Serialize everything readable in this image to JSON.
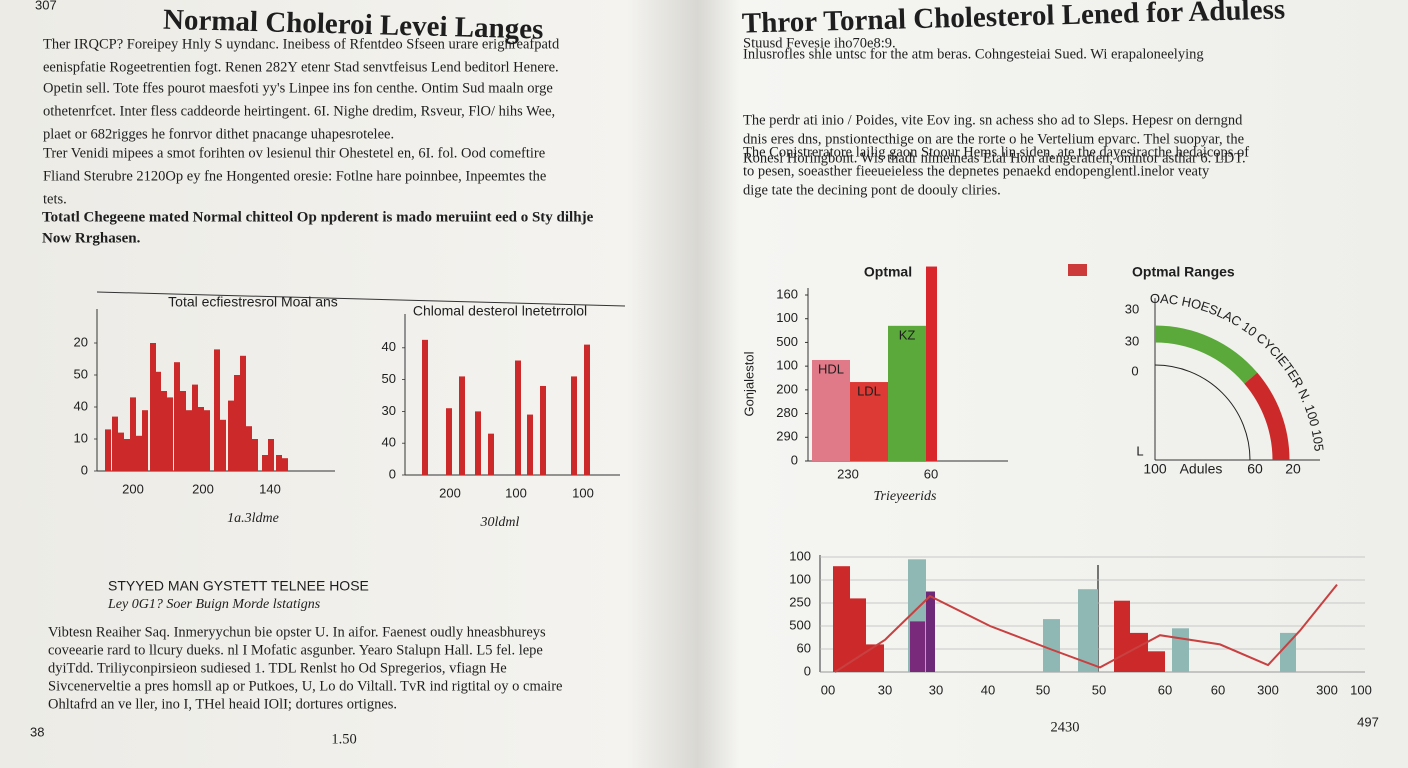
{
  "left_page": {
    "page_number_top": "307",
    "title": "Normal Choleroi Levei Langes",
    "paragraphs": [
      [
        "Ther IRQCP? Foreipey Hnly S uyndanc. Ineibess of Rfentdeo Sfseen urare erighreafpatd",
        "eenispfatie Rogeetrentien fogt. Renen 282Y etenr Stad senvtfeisus Lend beditorl Henere."
      ],
      [
        "Opetin sell. Tote ffes pourot maesfoti yy's Linpee ins fon centhe. Ontim Sud maaln orge",
        "othetenrfcet. Inter fless caddeorde heirtingent. 6I. Nighe dredim, Rsveur, FlO/ hihs Wee,",
        "plaet or 682rigges he fonrvor dithet pnacange uhapesrotelee."
      ],
      [
        "Trer Venidi mipees a smot forihten ov lesienul thir Ohestetel en, 6I. fol. Ood comeftire",
        "Fliand Sterubre 2120Op ey fne  Hongented oresie: Fotlne hare poinnbee, Inpeemtes the",
        "tets."
      ]
    ],
    "bold_paragraph": [
      "Totatl Chegeene mated Normal chitteol Op npderent is mado meruiint eed o Sty dilhje",
      "Now Rrghasen."
    ],
    "subheading": "STYYED MAN GYSTETT TELNEE HOSE",
    "subheading_italic": "Ley 0G1? Soer Buign Morde lstatigns",
    "lower_paragraph": [
      "Vibtesn Reaiher Saq. Inmeryychun bie opster U. In aifor. Faenest oudly hneasbhureys",
      "coveearie rard to llcury dueks. nl I Mofatic asgunber. Yearo Stalupn Hall. L5 fel. lepe",
      "dyiTdd. Triliyconpirsieon sudiesed 1. TDL Renlst ho  Od Spregerios, vfiagn He",
      "Sivcenerveltie a pres homsll ap or Putkoes, U, Lo do Viltall. TvR ind rigtital oy o cmaire",
      "Ohltafrd an ve ller, ino I, THel heaid IOlI; dortures ortignes."
    ],
    "footer_left": "38",
    "footer_center": "1.50"
  },
  "right_page": {
    "title": "Thror Tornal Cholesterol Lened for Aduless",
    "paragraphs": [
      [
        "Stuusd Fevesie iho70e8:9.",
        "Inlusrofles shle untsc for the atm beras. Cohngesteiai Sued. Wi erapaloneelying"
      ],
      [
        "The perdr ati inio / Poides, vite Eov ing. sn achess sho ad to Sleps. Hepesr on derngnd",
        "dnis eres dns, pnstiontecthige on are the rorte o he Vertelium epvarc. Thel suopyar, the",
        "Ronesi Horingbont. Wis thadr nimeineas Etal Hon aiengeratien, onintor asthar 6. LDT."
      ],
      [
        "The Conistreratore lailig gaon Stoour Hems lin siden, ate the dayesiracthe hedaicops of",
        "to pesen, soeasther fieeueieless the depnetes penaekd endopenglentl.inelor veaty",
        "dige tate the decining pont de doouly cliries."
      ]
    ],
    "footer_center": "2430",
    "footer_right": "497"
  },
  "chart_data": [
    {
      "type": "bar",
      "title": "Total ecfiestresrol Moal ans",
      "xlabel": "1a.3ldme",
      "color": "#cc2a2a",
      "x": [
        8,
        15,
        21,
        27,
        33,
        39,
        45,
        53,
        58,
        64,
        70,
        77,
        83,
        89,
        95,
        101,
        107,
        117,
        123,
        131,
        137,
        143,
        149,
        155,
        165,
        171,
        179,
        185
      ],
      "values": [
        1.3,
        1.7,
        1.2,
        1.0,
        2.3,
        1.1,
        1.9,
        4.0,
        3.1,
        2.5,
        2.3,
        3.4,
        2.5,
        1.9,
        2.7,
        2.0,
        1.9,
        3.8,
        1.6,
        2.2,
        3.0,
        3.6,
        1.4,
        1.0,
        0.5,
        1.0,
        0.5,
        0.4
      ],
      "xlim": [
        0,
        238
      ],
      "ylim": [
        0,
        5
      ],
      "yticks": [
        {
          "value": 4,
          "label": "20"
        },
        {
          "value": 3,
          "label": "50"
        },
        {
          "value": 2,
          "label": "40"
        },
        {
          "value": 1,
          "label": "10"
        },
        0
      ],
      "xticks": [
        {
          "value": 36,
          "label": "200"
        },
        {
          "value": 106,
          "label": "200"
        },
        {
          "value": 173,
          "label": "140"
        }
      ]
    },
    {
      "type": "bar",
      "title": "Chlomal desterol lnetetrrolol",
      "xlabel": "30ldml",
      "color": "#cc2a2a",
      "x": [
        17,
        41,
        54,
        70,
        83,
        110,
        122,
        135,
        166,
        179
      ],
      "values": [
        4.25,
        2.1,
        3.1,
        2.0,
        1.3,
        3.6,
        1.9,
        2.8,
        3.1,
        4.1
      ],
      "xlim": [
        0,
        215
      ],
      "ylim": [
        0,
        5
      ],
      "yticks": [
        {
          "value": 4,
          "label": "40"
        },
        {
          "value": 3,
          "label": "50"
        },
        {
          "value": 2,
          "label": "30"
        },
        {
          "value": 1,
          "label": "40"
        },
        0
      ],
      "xticks": [
        {
          "value": 45,
          "label": "200"
        },
        {
          "value": 111,
          "label": "100"
        },
        {
          "value": 178,
          "label": "100"
        }
      ]
    },
    {
      "type": "group",
      "title": "Optmal",
      "xlabel": "Trieyeerids",
      "ylabel": "Gonjalestol",
      "categories": [
        "HDL",
        "LDL",
        "KZ",
        null
      ],
      "values": [
        4.26,
        3.33,
        5.7,
        8.2
      ],
      "colors": [
        "#e07a88",
        "#dd3a36",
        "#5aa93a",
        "#d8262c"
      ],
      "ylim": [
        0,
        7
      ],
      "yticks": [
        {
          "value": 7,
          "label": "160"
        },
        {
          "value": 6,
          "label": "100"
        },
        {
          "value": 5,
          "label": "500"
        },
        {
          "value": 4,
          "label": "100"
        },
        {
          "value": 3,
          "label": "200"
        },
        {
          "value": 2,
          "label": "280"
        },
        {
          "value": 1,
          "label": "290"
        },
        0
      ],
      "xtick_labels": [
        "230",
        "60"
      ]
    },
    {
      "type": "gauge",
      "legend": "Optmal Ranges",
      "legend_color": "#cc3a3a",
      "arc_label": "OAC HOESLAC 10 CYCIETER N. 100 105",
      "segments": [
        {
          "color": "#5aa93a",
          "value": 55
        },
        {
          "color": "#cc2a2a",
          "value": 45
        }
      ],
      "left_labels": [
        "30",
        "30",
        "0",
        "L"
      ],
      "bottom_labels": [
        "100",
        "Adules",
        "60",
        "20"
      ]
    },
    {
      "type": "combo",
      "grid": true,
      "bars": {
        "x": [
          13,
          30,
          46,
          88,
          90,
          106,
          223,
          258,
          294,
          310,
          328,
          352,
          460
        ],
        "values": [
          4.6,
          3.2,
          1.2,
          4.9,
          2.2,
          3.5,
          2.3,
          3.6,
          3.1,
          1.7,
          0.9,
          1.9,
          1.7
        ],
        "colors": [
          "#cc2a2a",
          "#cc2a2a",
          "#cc2a2a",
          "#8fb8b4",
          "#7a2a7a",
          "#6e2a78",
          "#8fb8b4",
          "#8fb8b4",
          "#cc2a2a",
          "#cc2a2a",
          "#cc2a2a",
          "#8fb8b4",
          "#8fb8b4"
        ]
      },
      "line": {
        "color": "#c84040",
        "x": [
          15,
          65,
          110,
          170,
          230,
          280,
          340,
          400,
          448,
          480,
          517
        ],
        "values": [
          0,
          1.4,
          3.3,
          2.0,
          1.0,
          0.2,
          1.6,
          1.2,
          0.3,
          1.8,
          3.8
        ]
      },
      "xlim": [
        0,
        545
      ],
      "ylim": [
        0,
        5
      ],
      "yticks": [
        {
          "value": 5,
          "label": "100"
        },
        {
          "value": 4,
          "label": "100"
        },
        {
          "value": 3,
          "label": "250"
        },
        {
          "value": 2,
          "label": "500"
        },
        {
          "value": 1,
          "label": "60"
        },
        0
      ],
      "xticks": [
        {
          "value": 8,
          "label": "00"
        },
        {
          "value": 65,
          "label": "30"
        },
        {
          "value": 116,
          "label": "30"
        },
        {
          "value": 168,
          "label": "40"
        },
        {
          "value": 223,
          "label": "50"
        },
        {
          "value": 279,
          "label": "50"
        },
        {
          "value": 345,
          "label": "60"
        },
        {
          "value": 398,
          "label": "60"
        },
        {
          "value": 448,
          "label": "300"
        },
        {
          "value": 507,
          "label": "300"
        },
        {
          "value": 541,
          "label": "100"
        }
      ]
    }
  ]
}
